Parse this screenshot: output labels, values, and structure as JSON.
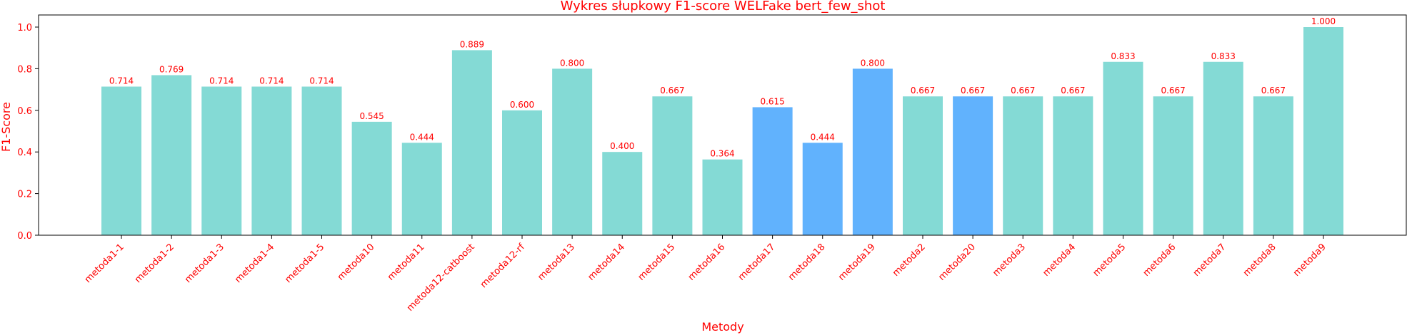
{
  "chart_data": {
    "type": "bar",
    "title": "Wykres słupkowy F1-score WELFake bert_few_shot",
    "xlabel": "Metody",
    "ylabel": "F1-Score",
    "ylim": [
      0,
      1.05
    ],
    "yticks": [
      "0.0",
      "0.2",
      "0.4",
      "0.6",
      "0.8",
      "1.0"
    ],
    "categories": [
      "metoda1-1",
      "metoda1-2",
      "metoda1-3",
      "metoda1-4",
      "metoda1-5",
      "metoda10",
      "metoda11",
      "metoda12-catboost",
      "metoda12-rf",
      "metoda13",
      "metoda14",
      "metoda15",
      "metoda16",
      "metoda17",
      "metoda18",
      "metoda19",
      "metoda2",
      "metoda20",
      "metoda3",
      "metoda4",
      "metoda5",
      "metoda6",
      "metoda7",
      "metoda8",
      "metoda9"
    ],
    "values": [
      0.714,
      0.769,
      0.714,
      0.714,
      0.714,
      0.545,
      0.444,
      0.889,
      0.6,
      0.8,
      0.4,
      0.667,
      0.364,
      0.615,
      0.444,
      0.8,
      0.667,
      0.667,
      0.667,
      0.667,
      0.833,
      0.667,
      0.833,
      0.667,
      1.0
    ],
    "labels": [
      "0.714",
      "0.769",
      "0.714",
      "0.714",
      "0.714",
      "0.545",
      "0.444",
      "0.889",
      "0.600",
      "0.800",
      "0.400",
      "0.667",
      "0.364",
      "0.615",
      "0.444",
      "0.800",
      "0.667",
      "0.667",
      "0.667",
      "0.667",
      "0.833",
      "0.667",
      "0.833",
      "0.667",
      "1.000"
    ],
    "highlighted": [
      "metoda17",
      "metoda18",
      "metoda19",
      "metoda20"
    ],
    "grid": false,
    "legend": "none"
  },
  "colors": {
    "bar": "#84dad5",
    "bar_highlight": "#61b2fd",
    "text": "#ff0000",
    "axis": "#000000"
  }
}
